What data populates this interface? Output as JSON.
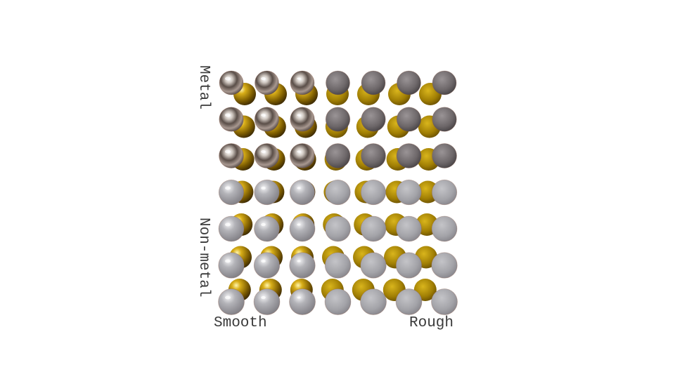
{
  "labels": {
    "smooth": "Smooth",
    "rough": "Rough",
    "metal": "Metal",
    "non_metal": "Non-metal"
  },
  "grid": {
    "columns": 7,
    "rows": 7,
    "axis_x": "roughness",
    "axis_y": "metalness"
  },
  "colors": {
    "front_sphere": "#a9a9ad",
    "back_sphere": "#b8960a",
    "label_text": "#3a3a3a"
  }
}
